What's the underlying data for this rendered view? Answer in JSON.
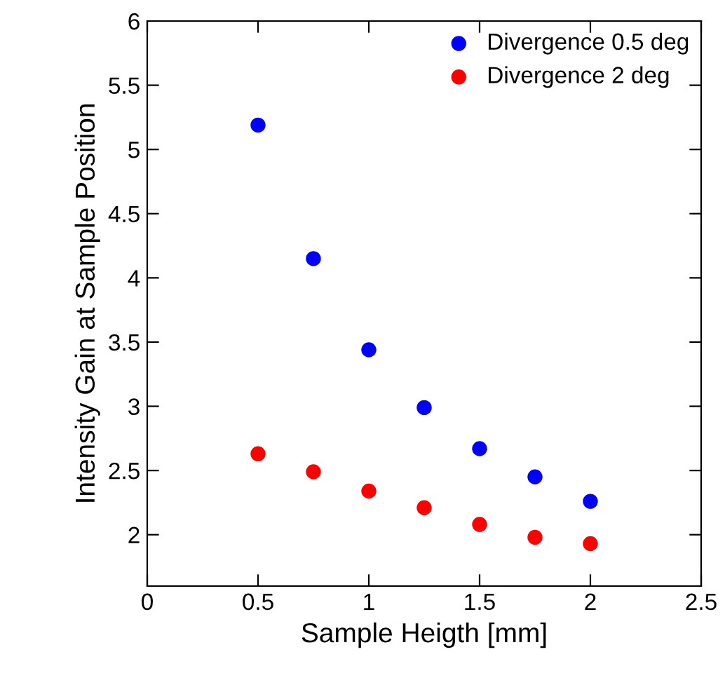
{
  "chart_data": {
    "type": "scatter",
    "xlabel": "Sample Heigth [mm]",
    "ylabel": "Intensity Gain at Sample Position",
    "x": [
      0.5,
      0.75,
      1,
      1.25,
      1.5,
      1.75,
      2
    ],
    "series": [
      {
        "name": "Divergence 0.5 deg",
        "color": "#0000ff",
        "values": [
          5.19,
          4.15,
          3.44,
          2.99,
          2.67,
          2.45,
          2.26
        ]
      },
      {
        "name": "Divergence 2 deg",
        "color": "#ff0000",
        "values": [
          2.63,
          2.49,
          2.34,
          2.21,
          2.08,
          1.98,
          1.93
        ]
      }
    ],
    "xlim": [
      0,
      2.5
    ],
    "xticks": [
      0,
      0.5,
      1,
      1.5,
      2,
      2.5
    ],
    "ylim": [
      1.6,
      6
    ],
    "yticks": [
      2,
      2.5,
      3,
      3.5,
      4,
      4.5,
      5,
      5.5,
      6
    ],
    "grid": false,
    "legend": "top right",
    "marker": "circle"
  }
}
